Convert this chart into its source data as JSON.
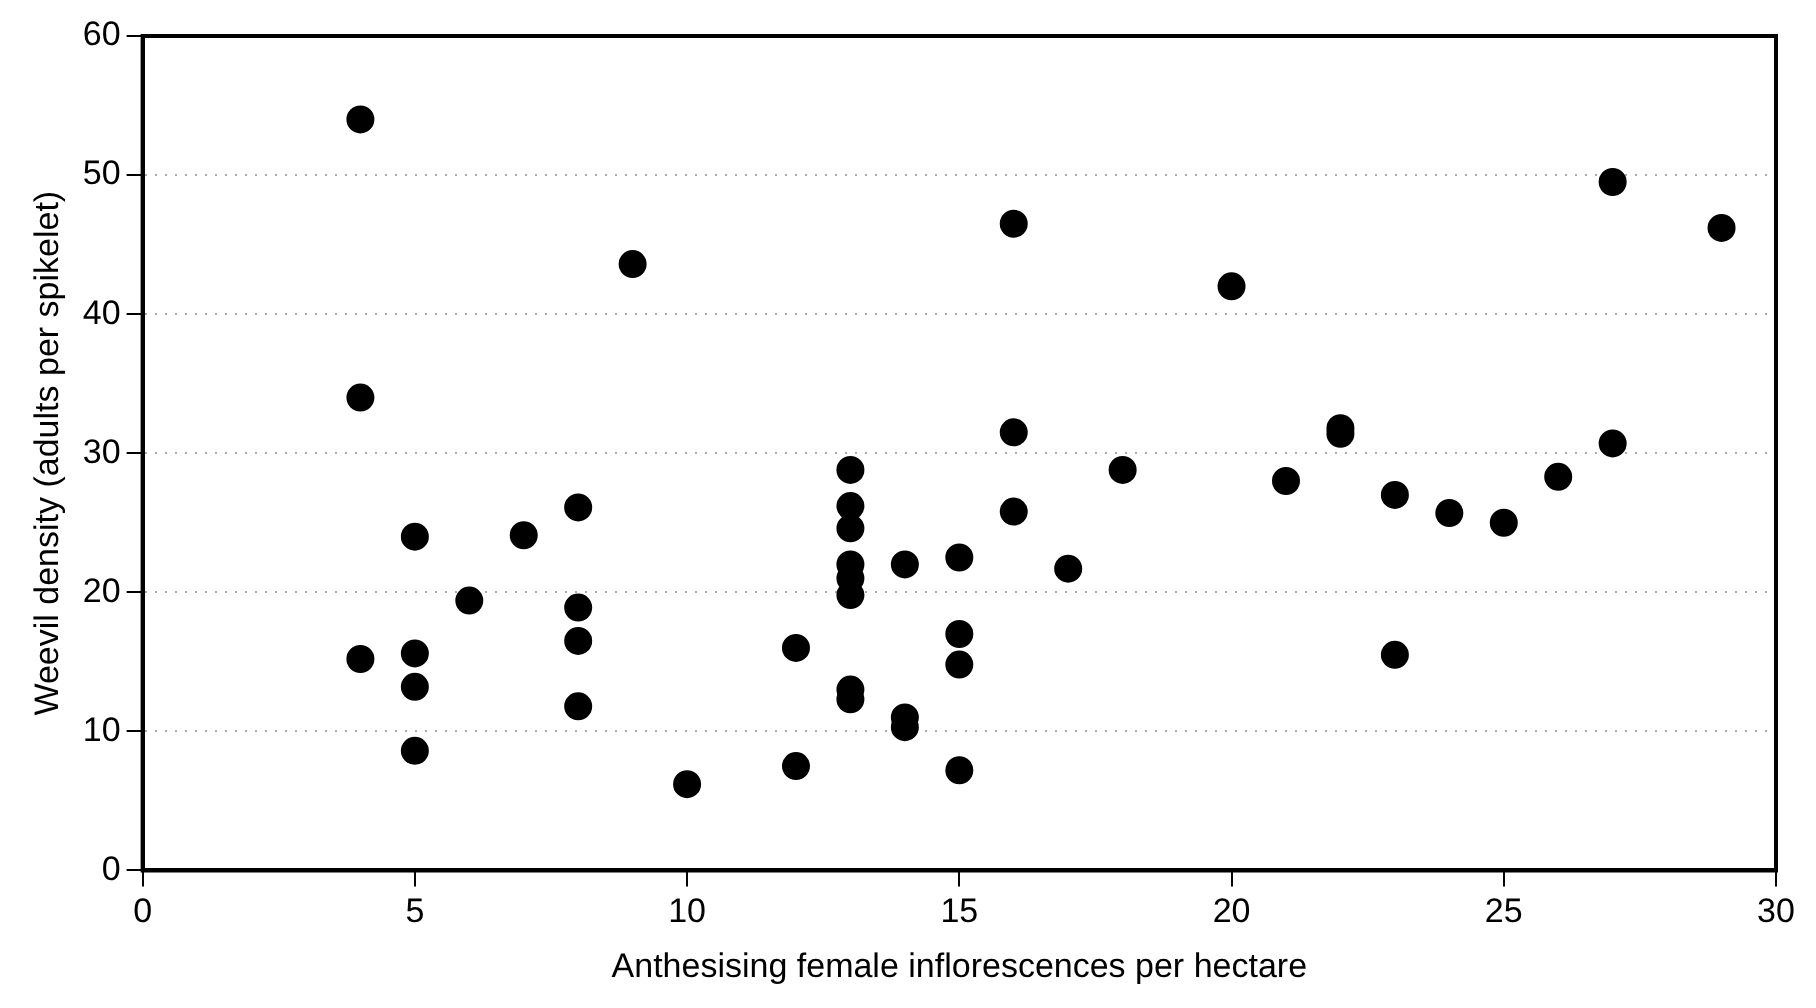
{
  "chart_data": {
    "type": "scatter",
    "xlabel": "Anthesising female inflorescences per hectare",
    "ylabel": "Weevil density (adults per spikelet)",
    "xlim": [
      0,
      30
    ],
    "xticks": [
      0,
      5,
      10,
      15,
      20,
      25,
      30
    ],
    "ylim": [
      0,
      60
    ],
    "yticks": [
      0,
      10,
      20,
      30,
      40,
      50,
      60
    ],
    "grid": "y",
    "marker": "circle",
    "legend": false,
    "series": [
      {
        "color": "#000000",
        "x": [
          4,
          4,
          4,
          5,
          5,
          5,
          5,
          6,
          7,
          8,
          8,
          8,
          8,
          9,
          10,
          12,
          12,
          13,
          13,
          13,
          13,
          13,
          13,
          13,
          13,
          14,
          14,
          14,
          15,
          15,
          15,
          15,
          16,
          16,
          16,
          17,
          18,
          20,
          21,
          22,
          22,
          23,
          23,
          24,
          25,
          26,
          27,
          27,
          29
        ],
        "values": [
          54,
          34,
          15.2,
          24,
          15.6,
          13.2,
          8.6,
          19.4,
          24.1,
          26.1,
          18.9,
          16.5,
          11.8,
          43.6,
          6.2,
          16,
          7.5,
          28.8,
          26.2,
          24.6,
          22,
          21,
          19.8,
          13,
          12.3,
          22,
          11,
          10.3,
          22.5,
          17,
          14.8,
          7.2,
          46.5,
          31.5,
          25.8,
          21.7,
          28.8,
          42,
          28,
          31.8,
          31.4,
          27,
          15.5,
          25.7,
          25,
          28.3,
          49.5,
          30.7,
          46.2
        ]
      }
    ]
  }
}
